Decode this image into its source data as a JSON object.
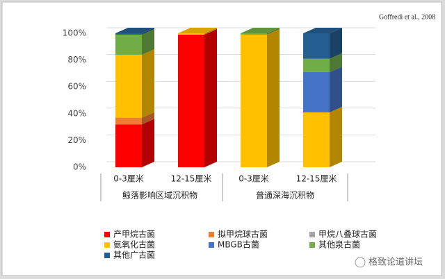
{
  "chart_data": {
    "type": "bar3d_stacked",
    "annotation": "Goffredi et al., 2008",
    "watermark": "格致论道讲坛",
    "categories": [
      "0-3厘米",
      "12-15厘米",
      "0-3厘米",
      "12-15厘米"
    ],
    "groups": [
      "鲸落影响区域沉积物",
      "普通深海沉积物"
    ],
    "series": [
      {
        "name": "产甲烷古菌",
        "color": "#ff0000",
        "values": [
          32,
          99,
          0,
          0
        ]
      },
      {
        "name": "拟甲烷球古菌",
        "color": "#ed7d31",
        "values": [
          5,
          0,
          0,
          0
        ]
      },
      {
        "name": "甲烷八叠球古菌",
        "color": "#a5a5a5",
        "values": [
          0,
          0,
          0,
          0
        ]
      },
      {
        "name": "氨氧化古菌",
        "color": "#ffc000",
        "values": [
          47,
          1,
          99,
          41
        ]
      },
      {
        "name": "MBGB古菌",
        "color": "#4472c4",
        "values": [
          0,
          0,
          0,
          30
        ]
      },
      {
        "name": "其他泉古菌",
        "color": "#70ad47",
        "values": [
          15,
          0,
          1,
          10
        ]
      },
      {
        "name": "其他广古菌",
        "color": "#255e91",
        "values": [
          1,
          0,
          0,
          19
        ]
      }
    ],
    "ylim": [
      0,
      100
    ],
    "yticks": [
      {
        "value": 0,
        "label": "0%"
      },
      {
        "value": 20,
        "label": "20%"
      },
      {
        "value": 40,
        "label": "40%"
      },
      {
        "value": 60,
        "label": "60%"
      },
      {
        "value": 80,
        "label": "80%"
      },
      {
        "value": 100,
        "label": "100%"
      }
    ],
    "grid": true
  }
}
